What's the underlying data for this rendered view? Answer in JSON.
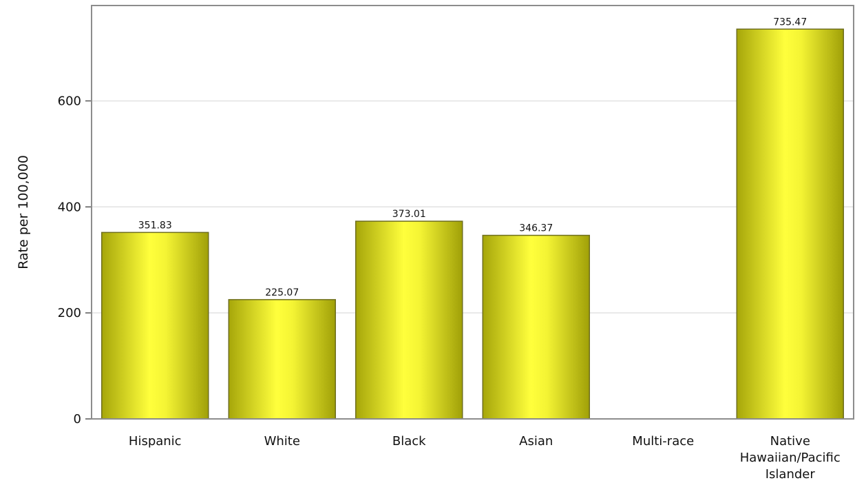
{
  "chart_data": {
    "type": "bar",
    "categories": [
      "Hispanic",
      "White",
      "Black",
      "Asian",
      "Multi-race",
      "Native Hawaiian/Pacific Islander"
    ],
    "category_lines": [
      [
        "Hispanic"
      ],
      [
        "White"
      ],
      [
        "Black"
      ],
      [
        "Asian"
      ],
      [
        "Multi-race"
      ],
      [
        "Native",
        "Hawaiian/Pacific",
        "Islander"
      ]
    ],
    "values": [
      351.83,
      225.07,
      373.01,
      346.37,
      null,
      735.47
    ],
    "data_labels": [
      "351.83",
      "225.07",
      "373.01",
      "346.37",
      "",
      "735.47"
    ],
    "xlabel": "",
    "ylabel": "Rate per 100,000",
    "ylim": [
      0,
      780
    ],
    "yticks": [
      0,
      200,
      400,
      600
    ],
    "grid": true,
    "colors": {
      "bar_light": "#ffff3a",
      "bar_dark": "#a8a80c",
      "bar_edge": "#6e6e1e",
      "grid": "#e2e2e2",
      "frame": "#8c8c8c"
    }
  }
}
